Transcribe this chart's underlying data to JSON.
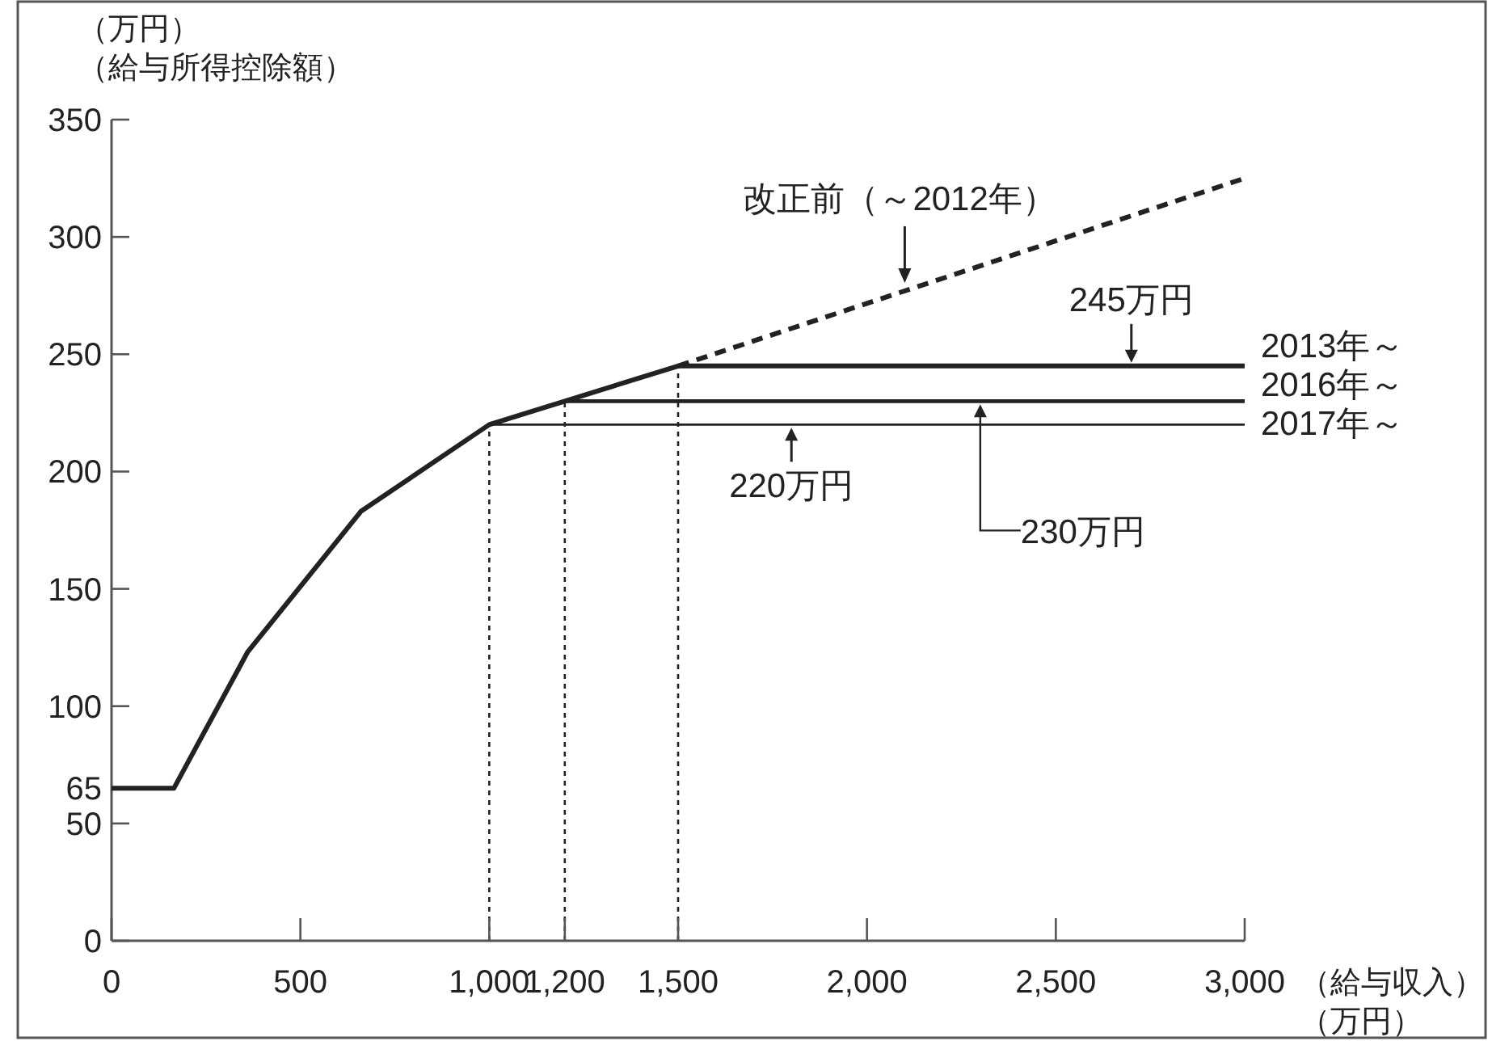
{
  "chart_data": {
    "type": "line",
    "ylabel": "（万円）（給与所得控除額）",
    "xlabel": "（給与収入）（万円）",
    "xlim": [
      0,
      3000
    ],
    "ylim": [
      0,
      350
    ],
    "xticks": [
      0,
      500,
      {
        "value": 1000,
        "label": "1,000"
      },
      {
        "value": 1200,
        "label": "1,200"
      },
      {
        "value": 1500,
        "label": "1,500"
      },
      {
        "value": 2000,
        "label": "2,000"
      },
      {
        "value": 2500,
        "label": "2,500"
      },
      {
        "value": 3000,
        "label": "3,000"
      }
    ],
    "yticks": [
      0,
      50,
      65,
      100,
      150,
      200,
      250,
      300,
      350
    ],
    "grid": false,
    "marker": "none",
    "series": [
      {
        "name": "2013年～",
        "color": "#222222",
        "x": [
          0,
          165,
          360,
          660,
          1000,
          1200,
          1500,
          3000
        ],
        "values": [
          65,
          65,
          123,
          183,
          220,
          230,
          245,
          245
        ]
      },
      {
        "name": "2016年～",
        "color": "#222222",
        "x": [
          1200,
          3000
        ],
        "values": [
          230,
          230
        ]
      },
      {
        "name": "2017年～",
        "color": "#222222",
        "x": [
          1000,
          3000
        ],
        "values": [
          220,
          220
        ]
      },
      {
        "name": "改正前（～2012年）",
        "color": "#222222",
        "line_style": "dashed",
        "x": [
          1500,
          3000
        ],
        "values": [
          245,
          325
        ]
      }
    ],
    "ref_lines": [
      {
        "axis": "x",
        "value": 1000,
        "line_style": "dotted",
        "color": "#222222"
      },
      {
        "axis": "x",
        "value": 1200,
        "line_style": "dotted",
        "color": "#222222"
      },
      {
        "axis": "x",
        "value": 1500,
        "line_style": "dotted",
        "color": "#222222"
      }
    ],
    "annotations": [
      {
        "text": "245万円",
        "x": 2700,
        "y": 245
      },
      {
        "text": "220万円",
        "x": 1800,
        "y": 220
      },
      {
        "text": "230万円",
        "x": 2300,
        "y": 230
      }
    ]
  }
}
